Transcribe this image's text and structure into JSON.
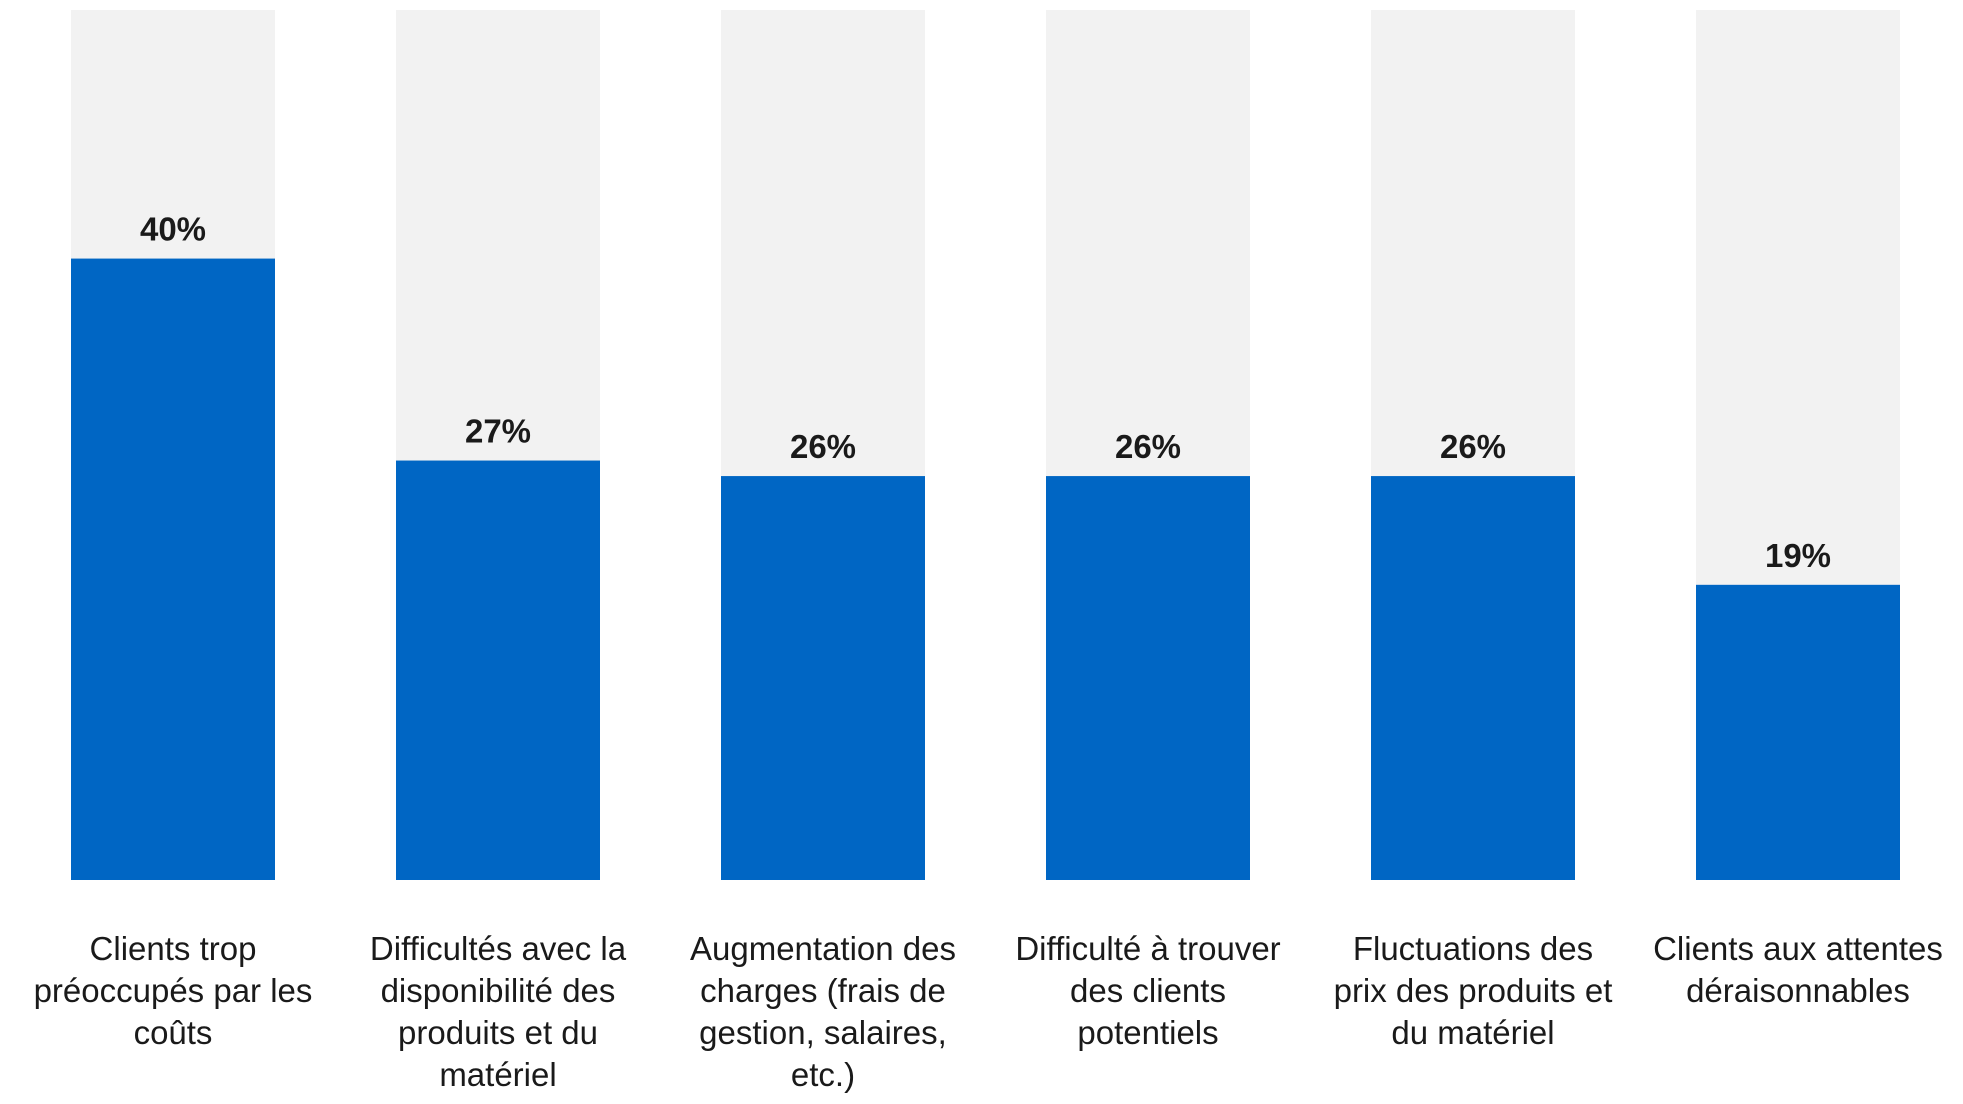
{
  "chart_data": {
    "type": "bar",
    "categories": [
      "Clients trop préoccupés par les coûts",
      "Difficultés avec la disponibilité des produits et du matériel",
      "Augmentation des charges (frais de gestion, salaires, etc.)",
      "Difficulté à trouver des clients potentiels",
      "Fluctuations des prix des produits et du matériel",
      "Clients aux attentes déraisonnables"
    ],
    "category_lines": [
      [
        "Clients trop",
        "préoccupés par les",
        "coûts"
      ],
      [
        "Difficultés avec la",
        "disponibilité des",
        "produits et du",
        "matériel"
      ],
      [
        "Augmentation des",
        "charges (frais de",
        "gestion, salaires,",
        "etc.)"
      ],
      [
        "Difficulté à trouver",
        "des clients",
        "potentiels"
      ],
      [
        "Fluctuations des",
        "prix des produits et",
        "du matériel"
      ],
      [
        "Clients aux attentes",
        "déraisonnables"
      ]
    ],
    "values": [
      40,
      27,
      26,
      26,
      26,
      19
    ],
    "value_labels": [
      "40%",
      "27%",
      "26%",
      "26%",
      "26%",
      "19%"
    ],
    "ylim": [
      0,
      56
    ],
    "title": "",
    "xlabel": "",
    "ylabel": "",
    "grid": false,
    "legend": "none",
    "colors": {
      "bar": "#0066c4",
      "background_bar": "#f2f2f2",
      "text": "#1a1a1a"
    }
  }
}
